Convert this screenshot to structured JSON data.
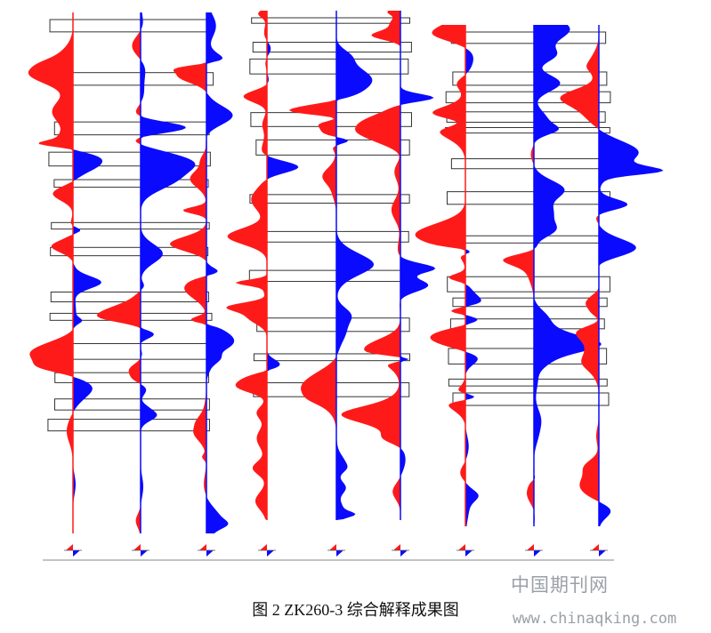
{
  "caption": "图 2 ZK260-3 综合解释成果图",
  "watermark": {
    "site": "中国期刊网",
    "url": "www.chinaqking.com"
  }
}
